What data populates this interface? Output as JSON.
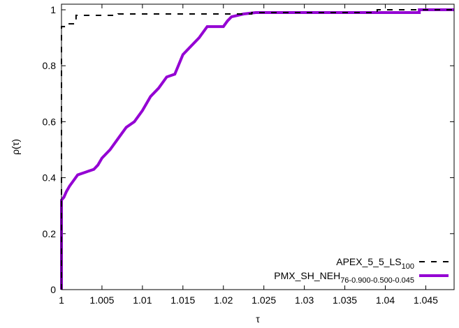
{
  "chart_data": {
    "type": "line",
    "xlabel": "τ",
    "ylabel": "ρ(τ)",
    "xlim": [
      1,
      1.0485
    ],
    "ylim": [
      0,
      1.02
    ],
    "xticks": [
      1,
      1.005,
      1.01,
      1.015,
      1.02,
      1.025,
      1.03,
      1.035,
      1.04,
      1.045
    ],
    "xtick_labels": [
      "1",
      "1.005",
      "1.01",
      "1.015",
      "1.02",
      "1.025",
      "1.03",
      "1.035",
      "1.04",
      "1.045"
    ],
    "yticks": [
      0,
      0.2,
      0.4,
      0.6,
      0.8,
      1
    ],
    "ytick_labels": [
      "0",
      "0.2",
      "0.4",
      "0.6",
      "0.8",
      "1"
    ],
    "grid": false,
    "legend_position": "bottom-right",
    "series": [
      {
        "name": "APEX_5_5_LS",
        "name_sub": "100",
        "color": "#000000",
        "style": "dashed",
        "x": [
          1.0,
          1.0,
          1.0005,
          1.0005,
          1.0018,
          1.0018,
          1.007,
          1.007,
          1.0235,
          1.0235,
          1.039,
          1.039,
          1.0485
        ],
        "y": [
          0.0,
          0.94,
          0.94,
          0.95,
          0.95,
          0.98,
          0.98,
          0.985,
          0.985,
          0.99,
          0.99,
          1.0,
          1.0
        ]
      },
      {
        "name": "PMX_SH_NEH",
        "name_sub": "76-0.900-0.500-0.045",
        "color": "#9400d3",
        "style": "solid",
        "x": [
          1.0,
          1.0,
          1.0003,
          1.0006,
          1.001,
          1.0015,
          1.002,
          1.003,
          1.004,
          1.0045,
          1.005,
          1.006,
          1.007,
          1.008,
          1.009,
          1.01,
          1.011,
          1.012,
          1.013,
          1.014,
          1.015,
          1.016,
          1.017,
          1.018,
          1.02,
          1.0205,
          1.021,
          1.0225,
          1.024,
          1.03,
          1.035,
          1.04,
          1.0442,
          1.0442,
          1.0485
        ],
        "y": [
          0.0,
          0.32,
          0.33,
          0.35,
          0.37,
          0.39,
          0.41,
          0.42,
          0.43,
          0.445,
          0.47,
          0.5,
          0.54,
          0.58,
          0.6,
          0.64,
          0.69,
          0.72,
          0.76,
          0.77,
          0.84,
          0.87,
          0.9,
          0.94,
          0.94,
          0.96,
          0.975,
          0.985,
          0.99,
          0.99,
          0.99,
          0.99,
          0.99,
          1.0,
          1.0
        ]
      }
    ]
  }
}
